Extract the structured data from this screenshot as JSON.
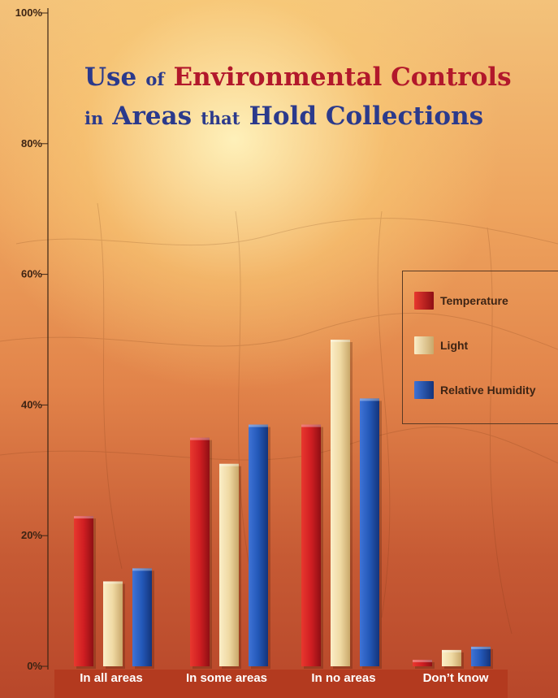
{
  "chart_data": {
    "type": "bar",
    "title": {
      "line1": [
        "Use",
        "of",
        "Environmental Controls"
      ],
      "line2": [
        "in",
        "Areas",
        "that",
        "Hold Collections"
      ]
    },
    "categories": [
      "In all areas",
      "In some areas",
      "In no areas",
      "Don’t know"
    ],
    "series": [
      {
        "name": "Temperature",
        "values": [
          23,
          35,
          37,
          1
        ]
      },
      {
        "name": "Light",
        "values": [
          13,
          31,
          50,
          2.5
        ]
      },
      {
        "name": "Relative Humidity",
        "values": [
          15,
          37,
          41,
          3
        ]
      }
    ],
    "y_ticks": [
      "0%",
      "20%",
      "40%",
      "60%",
      "80%",
      "100%"
    ],
    "ylim": [
      0,
      100
    ],
    "xlabel": "",
    "ylabel": "",
    "legend_position": "right",
    "grid": false,
    "colors": {
      "Temperature": "#c8171f",
      "Light": "#ecd5a0",
      "Relative Humidity": "#1f52b0"
    }
  }
}
